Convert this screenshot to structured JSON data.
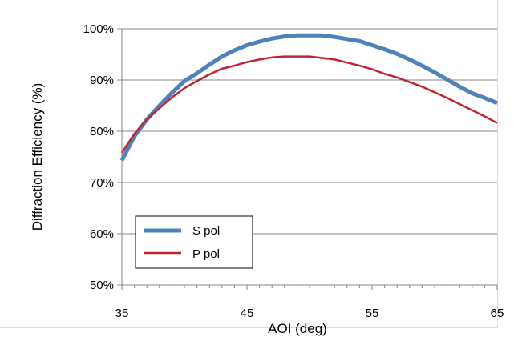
{
  "chart_data": {
    "type": "line",
    "xlabel": "AOI (deg)",
    "ylabel": "Diffraction Efficiency (%)",
    "xlim": [
      35,
      65
    ],
    "ylim": [
      50,
      100
    ],
    "x_ticks": [
      35,
      45,
      55,
      65
    ],
    "y_ticks": [
      50,
      60,
      70,
      80,
      90,
      100
    ],
    "x_tick_labels": [
      "35",
      "45",
      "55",
      "65"
    ],
    "y_tick_labels": [
      "50%",
      "60%",
      "70%",
      "80%",
      "90%",
      "100%"
    ],
    "grid": "horizontal",
    "legend_position": "lower-left",
    "x": [
      35,
      36,
      37,
      38,
      39,
      40,
      41,
      42,
      43,
      44,
      45,
      46,
      47,
      48,
      49,
      50,
      51,
      52,
      53,
      54,
      55,
      56,
      57,
      58,
      59,
      60,
      61,
      62,
      63,
      64,
      65
    ],
    "series": [
      {
        "name": "S pol",
        "color": "#4f81bd",
        "values": [
          74.3,
          79.0,
          82.3,
          85.0,
          87.5,
          89.8,
          91.3,
          93.0,
          94.6,
          95.8,
          96.8,
          97.5,
          98.1,
          98.5,
          98.7,
          98.7,
          98.7,
          98.4,
          98.0,
          97.6,
          96.8,
          96.0,
          95.1,
          94.0,
          92.8,
          91.5,
          90.1,
          88.7,
          87.4,
          86.5,
          85.5
        ]
      },
      {
        "name": "P pol",
        "color": "#c0262d",
        "values": [
          75.8,
          79.5,
          82.3,
          84.5,
          86.6,
          88.4,
          89.8,
          91.1,
          92.2,
          92.8,
          93.5,
          94.0,
          94.4,
          94.6,
          94.6,
          94.6,
          94.3,
          94.0,
          93.4,
          92.8,
          92.1,
          91.2,
          90.5,
          89.6,
          88.7,
          87.6,
          86.5,
          85.3,
          84.1,
          82.9,
          81.6
        ]
      }
    ]
  }
}
